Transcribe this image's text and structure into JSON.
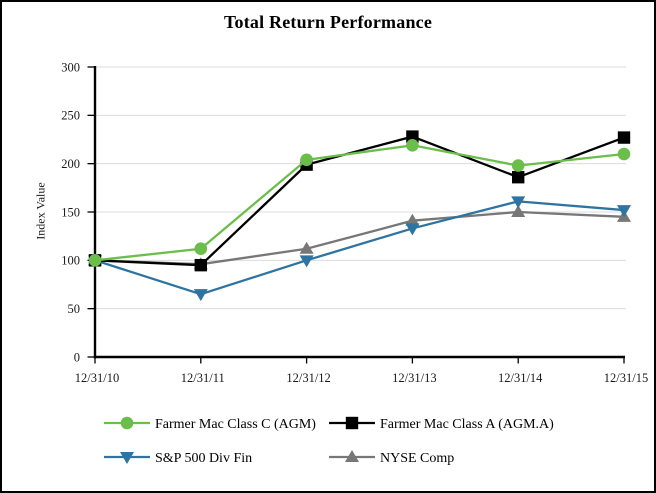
{
  "chart_data": {
    "type": "line",
    "title": "Total Return Performance",
    "ylabel": "Index Value",
    "xlabel": "",
    "categories": [
      "12/31/10",
      "12/31/11",
      "12/31/12",
      "12/31/13",
      "12/31/14",
      "12/31/15"
    ],
    "yticks": [
      0,
      50,
      100,
      150,
      200,
      250,
      300
    ],
    "ylim": [
      0,
      300
    ],
    "grid": true,
    "legend_position": "bottom",
    "series": [
      {
        "name": "Farmer Mac Class C (AGM)",
        "marker": "circle",
        "color": "#6CBE4B",
        "values": [
          100,
          112,
          204,
          219,
          198,
          210
        ]
      },
      {
        "name": "Farmer Mac Class A (AGM.A)",
        "marker": "square",
        "color": "#000000",
        "values": [
          100,
          95,
          199,
          228,
          186,
          227
        ]
      },
      {
        "name": "S&P 500 Div Fin",
        "marker": "triangle-down",
        "color": "#2E74A2",
        "values": [
          100,
          65,
          100,
          133,
          161,
          152
        ]
      },
      {
        "name": "NYSE Comp",
        "marker": "triangle-up",
        "color": "#777777",
        "values": [
          100,
          96,
          112,
          141,
          150,
          145
        ]
      }
    ],
    "colors": {
      "gridline": "#DCDCDC",
      "axis": "#000000",
      "tick_text": "#1a1a1a"
    }
  }
}
